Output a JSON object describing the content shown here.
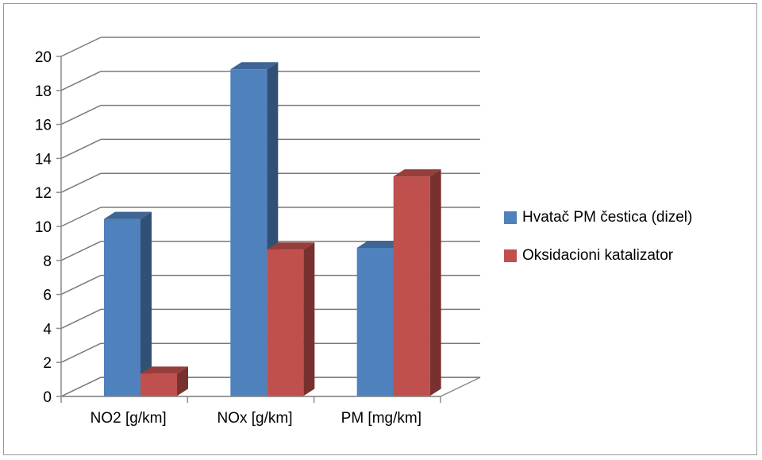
{
  "chart_data": {
    "type": "bar",
    "style": "3d-clustered-column",
    "categories": [
      "NO2 [g/km]",
      "NOx [g/km]",
      "PM [mg/km]"
    ],
    "series": [
      {
        "name": "Hvatač PM čestica (dizel)",
        "values": [
          10.3,
          19.1,
          8.6
        ],
        "color": "#4f81bd"
      },
      {
        "name": "Oksidacioni katalizator",
        "values": [
          1.2,
          8.5,
          12.8
        ],
        "color": "#c0504d"
      }
    ],
    "yticks": [
      "0",
      "2",
      "4",
      "6",
      "8",
      "10",
      "12",
      "14",
      "16",
      "18",
      "20"
    ],
    "ylim": [
      0,
      20
    ],
    "grid": true,
    "legend_position": "right"
  }
}
